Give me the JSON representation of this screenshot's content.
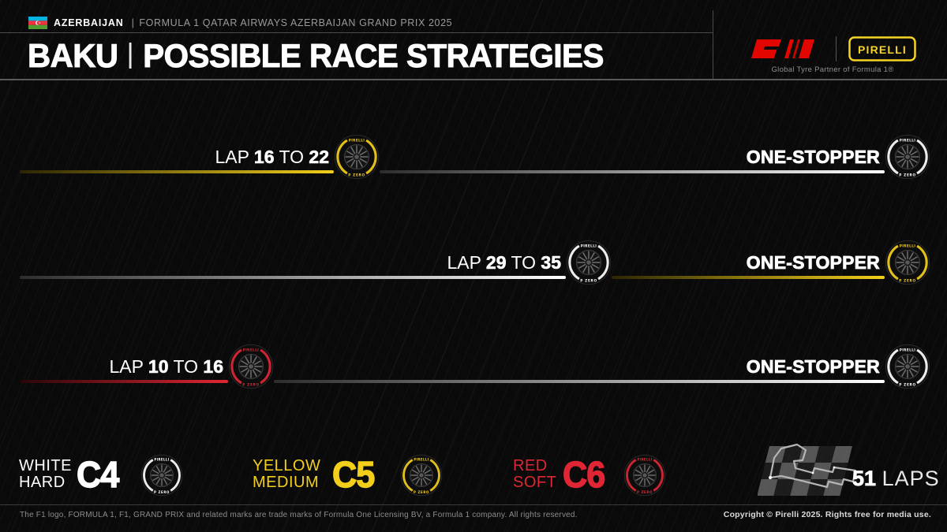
{
  "header": {
    "country": "AZERBAIJAN",
    "pipe": "|",
    "event": "FORMULA 1 QATAR AIRWAYS AZERBAIJAN GRAND PRIX 2025",
    "city": "BAKU",
    "title": "POSSIBLE RACE STRATEGIES",
    "partner_line": "Global Tyre Partner of Formula 1®",
    "f1_logo_text": "F1",
    "pirelli_logo_text": "PIRELLI"
  },
  "chart_data": {
    "type": "timeline",
    "title": "BAKU | POSSIBLE RACE STRATEGIES",
    "event": "FORMULA 1 QATAR AIRWAYS AZERBAIJAN GRAND PRIX 2025",
    "total_laps": 51,
    "x_axis": "race laps (0 to 51)",
    "strategies": [
      {
        "label": "ONE-STOPPER",
        "lap_word": "LAP",
        "to_word": "TO",
        "pit_lap_from": "16",
        "pit_lap_to": "22",
        "start_compound": "medium",
        "end_compound": "hard"
      },
      {
        "label": "ONE-STOPPER",
        "lap_word": "LAP",
        "to_word": "TO",
        "pit_lap_from": "29",
        "pit_lap_to": "35",
        "start_compound": "hard",
        "end_compound": "medium"
      },
      {
        "label": "ONE-STOPPER",
        "lap_word": "LAP",
        "to_word": "TO",
        "pit_lap_from": "10",
        "pit_lap_to": "16",
        "start_compound": "soft",
        "end_compound": "hard"
      }
    ],
    "compounds": [
      {
        "color_name": "WHITE",
        "type_name": "HARD",
        "code": "C4",
        "compound": "hard"
      },
      {
        "color_name": "YELLOW",
        "type_name": "MEDIUM",
        "code": "C5",
        "compound": "medium"
      },
      {
        "color_name": "RED",
        "type_name": "SOFT",
        "code": "C6",
        "compound": "soft"
      }
    ]
  },
  "compound_colors": {
    "hard": "#ffffff",
    "medium": "#f3cf1b",
    "soft": "#e02634"
  },
  "brand": {
    "f1_red": "#e10600",
    "pirelli_yellow": "#f5d327"
  },
  "tyre_icon": {
    "top_text": "PIRELLI",
    "bottom_text": "P ZERO"
  },
  "track": {
    "laps_value": "51",
    "laps_word": "LAPS"
  },
  "footer": {
    "left": "The F1 logo, FORMULA 1, F1, GRAND PRIX and related marks are trade marks of Formula One Licensing BV, a Formula 1 company. All rights reserved.",
    "right": "Copyright © Pirelli 2025. Rights free for media use."
  }
}
